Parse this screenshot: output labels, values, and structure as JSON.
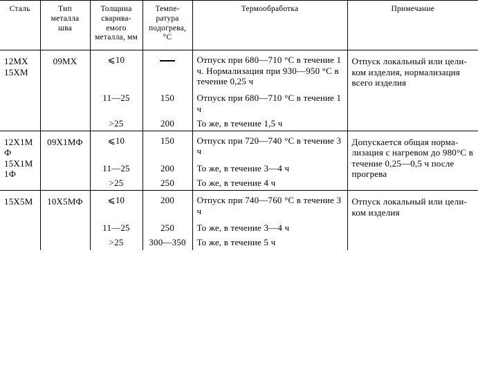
{
  "table": {
    "headers": [
      "Сталь",
      "Тип металла шва",
      "Толщина сварива­емого металла, мм",
      "Темпе­ратура подогре­ва, °C",
      "Термообработка",
      "Примечание"
    ],
    "groups": [
      {
        "steel": "12MX 15XM",
        "filler": "09MX",
        "note": "Отпуск локаль­ный или цели­ком изделия, нормализация всего изделия",
        "rows": [
          {
            "thick": "⩽10",
            "temp_dash": true,
            "treat": "Отпуск при 680—710 °C в течение 1 ч. Нормализация при 930—950 °C в тече­ние 0,25 ч"
          },
          {
            "thick": "11—25",
            "temp": "150",
            "treat": "Отпуск при 680—710 °C в течение 1 ч"
          },
          {
            "thick": ">25",
            "temp": "200",
            "treat": "То же, в течение 1,5 ч"
          }
        ]
      },
      {
        "steel": "12X1МФ 15X1М1Ф",
        "filler": "09X1МФ",
        "note": "Допускается общая норма­лизация с на­гревом до 980°C в течение 0,25—0,5 ч по­сле прогрева",
        "rows": [
          {
            "thick": "⩽10",
            "temp": "150",
            "treat": "Отпуск при 720—740 °C в течение 3 ч"
          },
          {
            "thick": "11—25",
            "temp": "200",
            "treat": "То же, в течение 3—4 ч"
          },
          {
            "thick": ">25",
            "temp": "250",
            "treat": "То же, в течение 4 ч"
          }
        ]
      },
      {
        "steel": "15X5M",
        "filler": "10X5МФ",
        "note": "Отпуск локаль­ный или цели­ком изделия",
        "rows": [
          {
            "thick": "⩽10",
            "temp": "200",
            "treat": "Отпуск при 740—760 °C в течение 3 ч"
          },
          {
            "thick": "11—25",
            "temp": "250",
            "treat": "То же, в течение 3—4 ч"
          },
          {
            "thick": ">25",
            "temp": "300—350",
            "treat": "То же, в течение 5 ч"
          }
        ]
      }
    ]
  }
}
